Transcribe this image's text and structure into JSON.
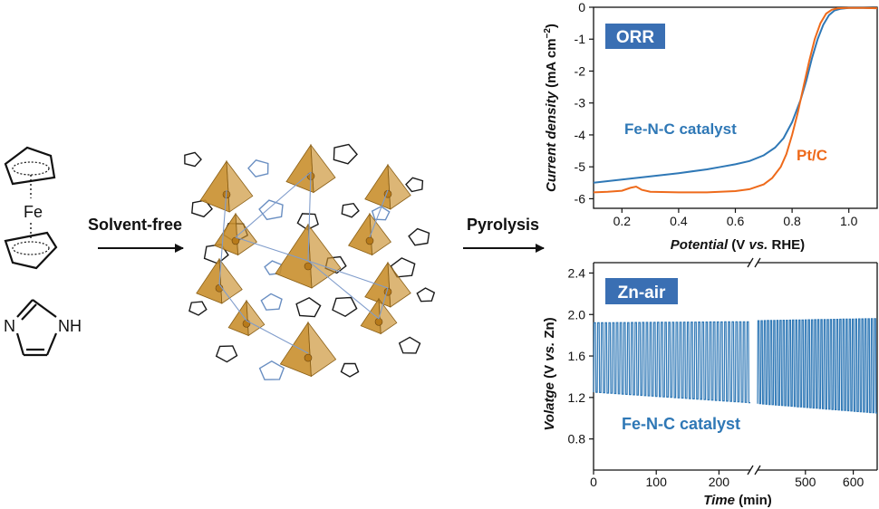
{
  "scheme": {
    "ferrocene_label": "Fe",
    "imidazole_labels": [
      "N",
      "NH"
    ],
    "step1_label": "Solvent-free",
    "step2_label": "Pyrolysis"
  },
  "colors": {
    "fenc": "#2f78b6",
    "ptc": "#ee6a1b",
    "badge": "#3a6fb3",
    "badge_text": "#ffffff",
    "tetra": "#c98f2d",
    "axis": "#111111"
  },
  "chart_data": [
    {
      "type": "line",
      "badge": "ORR",
      "xlabel": {
        "italic": "Potential",
        "rest": " (V ",
        "italic2": "vs.",
        "rest2": " RHE)"
      },
      "ylabel": {
        "italic": "Current density",
        "rest": " (mA cm",
        "sup": "−2",
        "close": ")"
      },
      "xlim": [
        0.1,
        1.1
      ],
      "ylim": [
        -6.3,
        0
      ],
      "xticks": [
        0.2,
        0.4,
        0.6,
        0.8,
        1.0
      ],
      "xtick_labels": [
        "0.2",
        "0.4",
        "0.6",
        "0.8",
        "1.0"
      ],
      "yticks": [
        0,
        -1,
        -2,
        -3,
        -4,
        -5,
        -6
      ],
      "ytick_labels": [
        "0",
        "-1",
        "-2",
        "-3",
        "-4",
        "-5",
        "-6"
      ],
      "series": [
        {
          "name": "Fe-N-C catalyst",
          "color": "#2f78b6",
          "x": [
            0.1,
            0.2,
            0.3,
            0.4,
            0.5,
            0.55,
            0.6,
            0.65,
            0.7,
            0.74,
            0.77,
            0.8,
            0.83,
            0.85,
            0.87,
            0.89,
            0.91,
            0.93,
            0.95,
            0.97,
            1.0,
            1.05,
            1.1
          ],
          "y": [
            -5.5,
            -5.4,
            -5.3,
            -5.2,
            -5.08,
            -5.0,
            -4.92,
            -4.82,
            -4.64,
            -4.4,
            -4.1,
            -3.6,
            -2.9,
            -2.3,
            -1.6,
            -1.0,
            -0.55,
            -0.25,
            -0.1,
            -0.05,
            -0.02,
            -0.02,
            -0.03
          ]
        },
        {
          "name": "Pt/C",
          "color": "#ee6a1b",
          "x": [
            0.1,
            0.15,
            0.2,
            0.23,
            0.25,
            0.27,
            0.3,
            0.4,
            0.5,
            0.6,
            0.65,
            0.7,
            0.73,
            0.76,
            0.78,
            0.8,
            0.82,
            0.84,
            0.86,
            0.88,
            0.9,
            0.92,
            0.94,
            0.96,
            1.0,
            1.05,
            1.1
          ],
          "y": [
            -5.8,
            -5.78,
            -5.75,
            -5.66,
            -5.62,
            -5.72,
            -5.78,
            -5.8,
            -5.8,
            -5.76,
            -5.7,
            -5.55,
            -5.35,
            -5.0,
            -4.6,
            -4.0,
            -3.3,
            -2.5,
            -1.7,
            -1.0,
            -0.5,
            -0.2,
            -0.08,
            -0.03,
            -0.02,
            -0.02,
            -0.03
          ]
        }
      ],
      "annotations": [
        "Fe-N-C catalyst",
        "Pt/C"
      ]
    },
    {
      "type": "line",
      "badge": "Zn-air",
      "xlabel": {
        "italic": "Time",
        "rest": " (min)"
      },
      "ylabel": {
        "italic": "Volatge",
        "rest": " (V ",
        "italic2": "vs.",
        "rest2": " Zn)"
      },
      "x_break": true,
      "xtick_labels": [
        "0",
        "100",
        "200",
        "500",
        "600"
      ],
      "xticks_left": [
        0,
        100,
        200
      ],
      "xticks_right": [
        500,
        600
      ],
      "xlim_left": [
        0,
        250
      ],
      "xlim_right": [
        400,
        650
      ],
      "ylim": [
        0.5,
        2.5
      ],
      "yticks": [
        0.8,
        1.2,
        1.6,
        2.0,
        2.4
      ],
      "ytick_labels": [
        "0.8",
        "1.2",
        "1.6",
        "2.0",
        "2.4"
      ],
      "series": [
        {
          "name": "Fe-N-C catalyst",
          "color": "#2f78b6",
          "segments": [
            {
              "t_start": 0,
              "t_end": 250,
              "cycles": 42,
              "charge": [
                1.92,
                1.93
              ],
              "discharge": [
                1.25,
                1.15
              ]
            },
            {
              "t_start": 400,
              "t_end": 650,
              "cycles": 38,
              "charge": [
                1.94,
                1.96
              ],
              "discharge": [
                1.14,
                1.05
              ]
            }
          ]
        }
      ],
      "annotations": [
        "Fe-N-C catalyst"
      ]
    }
  ]
}
